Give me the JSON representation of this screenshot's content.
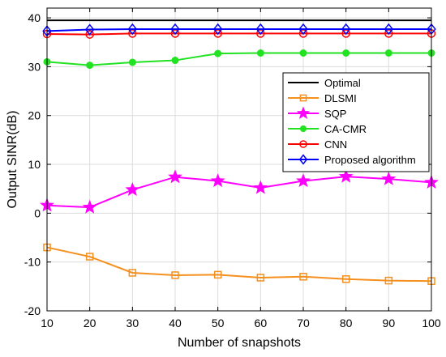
{
  "chart_data": {
    "type": "line",
    "title": "",
    "xlabel": "Number of snapshots",
    "ylabel": "Output SINR(dB)",
    "xlim": [
      10,
      100
    ],
    "ylim": [
      -20,
      42
    ],
    "xticks": [
      10,
      20,
      30,
      40,
      50,
      60,
      70,
      80,
      90,
      100
    ],
    "yticks": [
      -20,
      -10,
      0,
      10,
      20,
      30,
      40
    ],
    "grid": true,
    "legend_position": "right-middle",
    "x": [
      10,
      20,
      30,
      40,
      50,
      60,
      70,
      80,
      90,
      100
    ],
    "series": [
      {
        "name": "Optimal",
        "color": "#000000",
        "marker": "none",
        "values": [
          39.5,
          39.5,
          39.5,
          39.5,
          39.5,
          39.5,
          39.5,
          39.5,
          39.5,
          39.5
        ]
      },
      {
        "name": "DLSMI",
        "color": "#f5901e",
        "marker": "square",
        "values": [
          -7.0,
          -8.9,
          -12.2,
          -12.7,
          -12.6,
          -13.2,
          -13.0,
          -13.5,
          -13.8,
          -13.9
        ]
      },
      {
        "name": "SQP",
        "color": "#ff00ff",
        "marker": "star",
        "values": [
          1.6,
          1.2,
          4.8,
          7.4,
          6.6,
          5.2,
          6.6,
          7.5,
          7.0,
          6.3
        ]
      },
      {
        "name": "CA-CMR",
        "color": "#22e222",
        "marker": "dot",
        "values": [
          31.0,
          30.3,
          30.9,
          31.3,
          32.7,
          32.8,
          32.8,
          32.8,
          32.8,
          32.8
        ]
      },
      {
        "name": "CNN",
        "color": "#ff0000",
        "marker": "circle",
        "values": [
          36.7,
          36.6,
          36.8,
          36.8,
          36.8,
          36.8,
          36.8,
          36.8,
          36.8,
          36.8
        ]
      },
      {
        "name": "Proposed algorithm",
        "color": "#0000ff",
        "marker": "diamond",
        "values": [
          37.3,
          37.6,
          37.7,
          37.7,
          37.7,
          37.7,
          37.7,
          37.7,
          37.7,
          37.7
        ]
      }
    ]
  }
}
